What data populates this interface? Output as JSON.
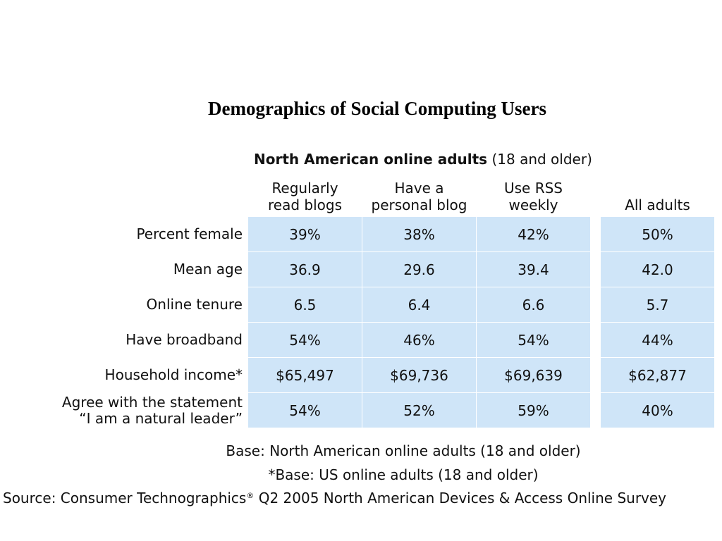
{
  "title": "Demographics of Social Computing Users",
  "chart_data": {
    "type": "table",
    "title": "Demographics of Social Computing Users",
    "subtitle_bold": "North American online adults",
    "subtitle_rest": "(18 and older)",
    "columns": [
      "Regularly\nread blogs",
      "Have a\npersonal blog",
      "Use RSS\nweekly",
      "All adults"
    ],
    "rows": [
      {
        "label": "Percent female",
        "values": [
          "39%",
          "38%",
          "42%",
          "50%"
        ]
      },
      {
        "label": "Mean age",
        "values": [
          "36.9",
          "29.6",
          "39.4",
          "42.0"
        ]
      },
      {
        "label": "Online tenure",
        "values": [
          "6.5",
          "6.4",
          "6.6",
          "5.7"
        ]
      },
      {
        "label": "Have broadband",
        "values": [
          "54%",
          "46%",
          "54%",
          "44%"
        ]
      },
      {
        "label": "Household income*",
        "values": [
          "$65,497",
          "$69,736",
          "$69,639",
          "$62,877"
        ]
      },
      {
        "label": "Agree with the statement\n“I am a natural leader”",
        "values": [
          "54%",
          "52%",
          "59%",
          "40%"
        ]
      }
    ]
  },
  "notes": {
    "base": "Base: North American online adults (18 and older)",
    "base_us": "*Base: US online adults (18 and older)",
    "source_prefix": "Source: Consumer Technographics",
    "source_mark": "®",
    "source_suffix": " Q2 2005 North American Devices & Access Online Survey"
  },
  "colors": {
    "cell_fill": "#cfe5f8",
    "text": "#111111"
  }
}
